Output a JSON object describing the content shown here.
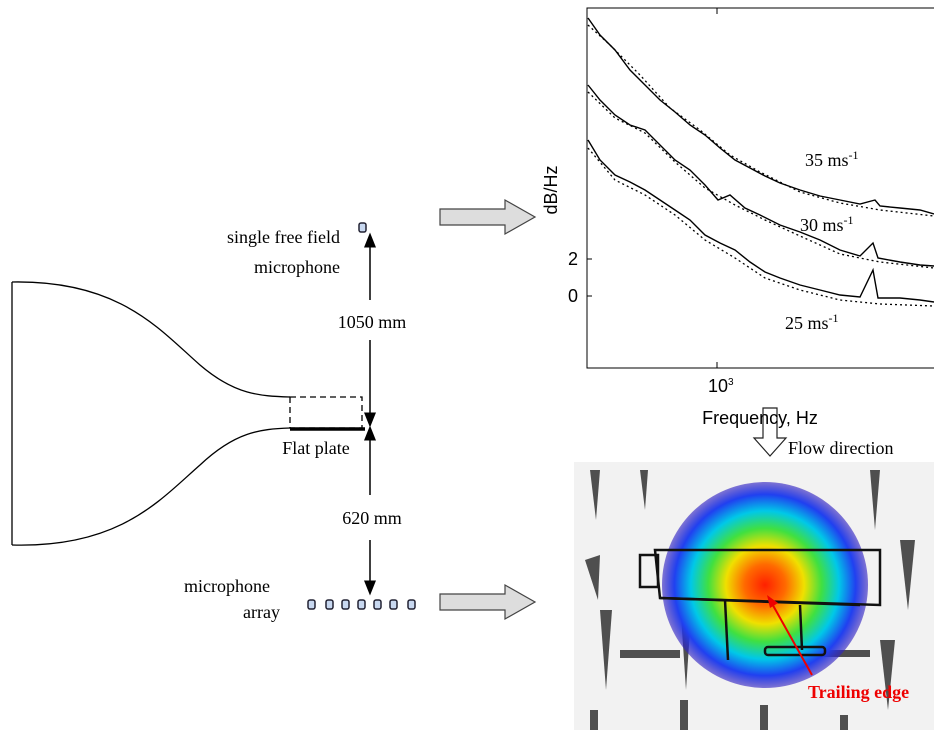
{
  "setup": {
    "single_mic_label": [
      "single free field",
      "microphone"
    ],
    "array_label": [
      "microphone",
      "array"
    ],
    "distance_top": "1050 mm",
    "distance_bottom": "620 mm",
    "plate_label": "Flat plate"
  },
  "spectrum": {
    "ylabel": "dB/Hz",
    "xlabel": "Frequency, Hz",
    "yticks": [
      "2",
      "0"
    ],
    "xtick": {
      "base": "10",
      "exp": "3"
    },
    "curve_labels": [
      {
        "text": "35 ms",
        "exp": "-1"
      },
      {
        "text": "30 ms",
        "exp": "-1"
      },
      {
        "text": "25 ms",
        "exp": "-1"
      }
    ]
  },
  "source_map": {
    "flow_label": "Flow direction",
    "edge_label": "Trailing edge"
  }
}
